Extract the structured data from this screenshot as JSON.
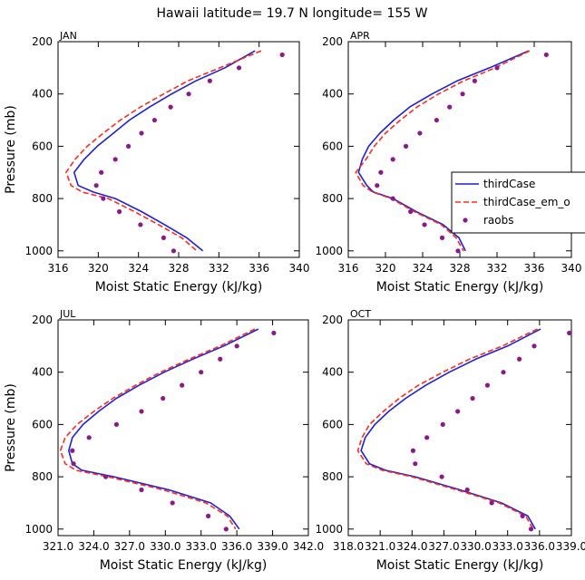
{
  "title": "Hawaii  latitude= 19.7 N longitude= 155 W",
  "colors": {
    "thirdCase": "#1f1fd6",
    "thirdCase_em_o": "#ff2b1a",
    "raobs": "#8a1a8a",
    "axis": "#000000"
  },
  "legend": {
    "items": [
      {
        "label": "thirdCase",
        "style": "solid"
      },
      {
        "label": "thirdCase_em_o",
        "style": "dashed"
      },
      {
        "label": "raobs",
        "style": "dot"
      }
    ]
  },
  "chart_data": [
    {
      "panel": "JAN",
      "type": "line",
      "xlabel": "Moist Static Energy (kJ/kg)",
      "ylabel": "Pressure (mb)",
      "xlim": [
        316,
        340
      ],
      "ylim": [
        200,
        1025
      ],
      "y_reversed": true,
      "xticks": [
        316,
        320,
        324,
        328,
        332,
        336,
        340
      ],
      "xtick_labels": [
        "316",
        "320",
        "324",
        "328",
        "332",
        "336",
        "340"
      ],
      "yticks": [
        200,
        400,
        600,
        800,
        1000
      ],
      "ytick_labels": [
        "200",
        "400",
        "600",
        "800",
        "1000"
      ],
      "series": [
        {
          "name": "thirdCase",
          "style": "solid",
          "x": [
            335.6,
            332.6,
            329.7,
            327.3,
            325.1,
            323.1,
            321.5,
            319.9,
            318.6,
            317.6,
            318.0,
            319.5,
            321.7,
            324.3,
            326.6,
            328.8,
            330.4
          ],
          "y": [
            235,
            300,
            350,
            400,
            450,
            500,
            550,
            600,
            650,
            700,
            750,
            775,
            800,
            850,
            900,
            950,
            1000
          ]
        },
        {
          "name": "thirdCase_em_o",
          "style": "dashed",
          "x": [
            336.2,
            332.1,
            328.9,
            326.5,
            324.2,
            322.2,
            320.5,
            318.9,
            317.7,
            316.8,
            317.3,
            318.4,
            321.0,
            323.6,
            326.0,
            328.3,
            329.8
          ],
          "y": [
            235,
            300,
            350,
            400,
            450,
            500,
            550,
            600,
            650,
            700,
            750,
            775,
            800,
            850,
            900,
            950,
            1000
          ]
        },
        {
          "name": "raobs",
          "style": "dot",
          "x": [
            338.3,
            334.0,
            331.1,
            329.0,
            327.2,
            325.6,
            324.3,
            323.0,
            321.7,
            320.3,
            319.8,
            320.5,
            322.1,
            324.2,
            326.5,
            327.5
          ],
          "y": [
            250,
            300,
            350,
            400,
            450,
            500,
            550,
            600,
            650,
            700,
            750,
            800,
            850,
            900,
            950,
            1000
          ]
        }
      ]
    },
    {
      "panel": "APR",
      "type": "line",
      "xlabel": "Moist Static Energy (kJ/kg)",
      "ylabel": "Pressure (mb)",
      "xlim": [
        316,
        340
      ],
      "ylim": [
        200,
        1025
      ],
      "y_reversed": true,
      "xticks": [
        316,
        320,
        324,
        328,
        332,
        336,
        340
      ],
      "xtick_labels": [
        "316",
        "320",
        "324",
        "328",
        "332",
        "336",
        "340"
      ],
      "yticks": [
        200,
        400,
        600,
        800,
        1000
      ],
      "ytick_labels": [
        "200",
        "400",
        "600",
        "800",
        "1000"
      ],
      "series": [
        {
          "name": "thirdCase",
          "style": "solid",
          "x": [
            335.4,
            331.2,
            327.7,
            325.0,
            322.6,
            320.9,
            319.4,
            318.2,
            317.5,
            317.1,
            318.0,
            318.7,
            320.8,
            323.3,
            326.2,
            327.9,
            328.6
          ],
          "y": [
            235,
            300,
            350,
            400,
            450,
            500,
            550,
            600,
            650,
            700,
            750,
            775,
            800,
            850,
            900,
            950,
            1000
          ]
        },
        {
          "name": "thirdCase_em_o",
          "style": "dashed",
          "x": [
            335.5,
            331.8,
            328.4,
            325.7,
            323.4,
            321.6,
            320.0,
            318.8,
            317.9,
            316.8,
            317.6,
            318.6,
            320.6,
            323.1,
            326.0,
            327.6,
            328.4
          ],
          "y": [
            235,
            300,
            350,
            400,
            450,
            500,
            550,
            600,
            650,
            700,
            750,
            775,
            800,
            850,
            900,
            950,
            1000
          ]
        },
        {
          "name": "raobs",
          "style": "dot",
          "x": [
            337.3,
            332.0,
            329.6,
            328.3,
            326.9,
            325.5,
            323.7,
            322.2,
            320.8,
            319.5,
            319.1,
            320.8,
            322.7,
            324.2,
            326.1,
            327.8
          ],
          "y": [
            250,
            300,
            350,
            400,
            450,
            500,
            550,
            600,
            650,
            700,
            750,
            800,
            850,
            900,
            950,
            1000
          ]
        }
      ]
    },
    {
      "panel": "JUL",
      "type": "line",
      "xlabel": "Moist Static Energy (kJ/kg)",
      "ylabel": "Pressure (mb)",
      "xlim": [
        321,
        342
      ],
      "ylim": [
        200,
        1025
      ],
      "y_reversed": true,
      "xticks": [
        321,
        324,
        327,
        330,
        333,
        336,
        339,
        342
      ],
      "xtick_labels": [
        "321.0",
        "324.0",
        "327.0",
        "330.0",
        "333.0",
        "336.0",
        "339.0",
        "342.0"
      ],
      "yticks": [
        200,
        400,
        600,
        800,
        1000
      ],
      "ytick_labels": [
        "200",
        "400",
        "600",
        "800",
        "1000"
      ],
      "series": [
        {
          "name": "thirdCase",
          "style": "solid",
          "x": [
            337.8,
            334.9,
            332.3,
            329.9,
            327.8,
            325.9,
            324.4,
            323.1,
            322.2,
            321.9,
            322.2,
            323.0,
            325.7,
            330.3,
            333.8,
            335.4,
            336.2
          ],
          "y": [
            235,
            300,
            350,
            400,
            450,
            500,
            550,
            600,
            650,
            700,
            750,
            775,
            800,
            850,
            900,
            950,
            1000
          ]
        },
        {
          "name": "thirdCase_em_o",
          "style": "dashed",
          "x": [
            337.5,
            334.6,
            332.0,
            329.6,
            327.5,
            325.6,
            324.0,
            322.6,
            321.6,
            321.2,
            321.6,
            322.5,
            325.2,
            329.8,
            333.4,
            335.2,
            335.9
          ],
          "y": [
            235,
            300,
            350,
            400,
            450,
            500,
            550,
            600,
            650,
            700,
            750,
            775,
            800,
            850,
            900,
            950,
            1000
          ]
        },
        {
          "name": "raobs",
          "style": "dot",
          "x": [
            339.1,
            336.0,
            334.6,
            333.0,
            331.4,
            329.8,
            328.0,
            325.9,
            323.6,
            322.2,
            322.3,
            325.0,
            328.0,
            330.6,
            333.6,
            335.1
          ],
          "y": [
            250,
            300,
            350,
            400,
            450,
            500,
            550,
            600,
            650,
            700,
            750,
            800,
            850,
            900,
            950,
            1000
          ]
        }
      ]
    },
    {
      "panel": "OCT",
      "type": "line",
      "xlabel": "Moist Static Energy (kJ/kg)",
      "ylabel": "Pressure (mb)",
      "xlim": [
        318,
        339
      ],
      "ylim": [
        200,
        1025
      ],
      "y_reversed": true,
      "xticks": [
        318,
        321,
        324,
        327,
        330,
        333,
        336,
        339
      ],
      "xtick_labels": [
        "318.0",
        "321.0",
        "324.0",
        "327.0",
        "330.0",
        "333.0",
        "336.0",
        "339.0"
      ],
      "yticks": [
        200,
        400,
        600,
        800,
        1000
      ],
      "ytick_labels": [
        "200",
        "400",
        "600",
        "800",
        "1000"
      ],
      "series": [
        {
          "name": "thirdCase",
          "style": "solid",
          "x": [
            336.1,
            333.0,
            330.0,
            327.5,
            325.3,
            323.4,
            321.8,
            320.5,
            319.6,
            319.2,
            320.0,
            321.5,
            324.3,
            328.5,
            332.4,
            334.9,
            335.6
          ],
          "y": [
            235,
            300,
            350,
            400,
            450,
            500,
            550,
            600,
            650,
            700,
            750,
            775,
            800,
            850,
            900,
            950,
            1000
          ]
        },
        {
          "name": "thirdCase_em_o",
          "style": "dashed",
          "x": [
            335.8,
            332.5,
            329.4,
            326.9,
            324.6,
            322.8,
            321.3,
            320.0,
            319.3,
            318.9,
            319.7,
            321.2,
            324.0,
            328.2,
            332.2,
            334.7,
            335.4
          ],
          "y": [
            235,
            300,
            350,
            400,
            450,
            500,
            550,
            600,
            650,
            700,
            750,
            775,
            800,
            850,
            900,
            950,
            1000
          ]
        },
        {
          "name": "raobs",
          "style": "dot",
          "x": [
            338.8,
            335.5,
            334.1,
            332.6,
            331.1,
            329.7,
            328.3,
            326.9,
            325.4,
            324.1,
            324.3,
            326.8,
            329.2,
            331.5,
            334.4,
            335.2
          ],
          "y": [
            250,
            300,
            350,
            400,
            450,
            500,
            550,
            600,
            650,
            700,
            750,
            800,
            850,
            900,
            950,
            1000
          ]
        }
      ]
    }
  ]
}
